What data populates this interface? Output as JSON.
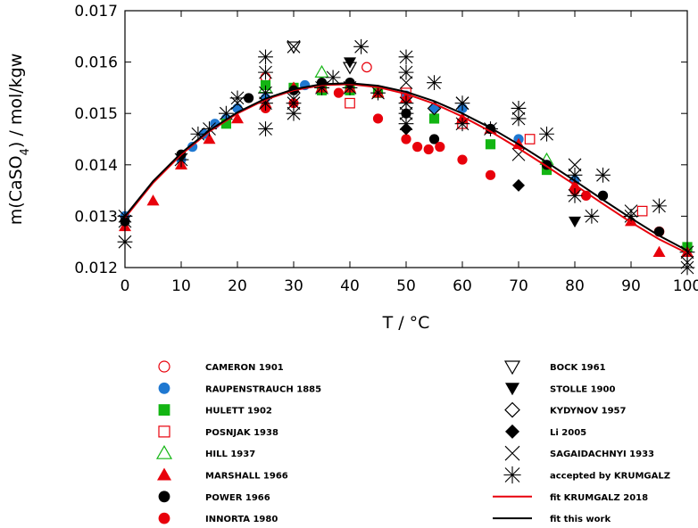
{
  "chart_data": {
    "type": "scatter",
    "title": "",
    "xlabel": "T / °C",
    "ylabel_main": "m(CaSO",
    "ylabel_sub": "4",
    "ylabel_tail": ") / mol/kgw",
    "xlim": [
      0,
      100
    ],
    "ylim": [
      0.012,
      0.017
    ],
    "xticks": [
      "0",
      "10",
      "20",
      "30",
      "40",
      "50",
      "60",
      "70",
      "80",
      "90",
      "100"
    ],
    "yticks": [
      "0.012",
      "0.013",
      "0.014",
      "0.015",
      "0.016",
      "0.017"
    ],
    "grid": false,
    "legend_position": "below",
    "series": [
      {
        "name": "CAMERON 1901",
        "marker": "circle-open",
        "color": "#e8000b",
        "points": [
          [
            25,
            0.0157
          ],
          [
            43,
            0.0159
          ],
          [
            95,
            0.0127
          ]
        ]
      },
      {
        "name": "RAUPENSTRAUCH 1885",
        "marker": "circle-filled",
        "color": "#1f78d1",
        "points": [
          [
            0,
            0.013
          ],
          [
            10,
            0.0141
          ],
          [
            12,
            0.01435
          ],
          [
            14,
            0.0146
          ],
          [
            16,
            0.0148
          ],
          [
            18,
            0.0149
          ],
          [
            20,
            0.0151
          ],
          [
            25,
            0.0153
          ],
          [
            30,
            0.0155
          ],
          [
            32,
            0.01555
          ],
          [
            35,
            0.01555
          ],
          [
            40,
            0.0155
          ],
          [
            45,
            0.0154
          ],
          [
            50,
            0.01535
          ],
          [
            55,
            0.0151
          ],
          [
            60,
            0.0151
          ],
          [
            65,
            0.0147
          ],
          [
            70,
            0.0145
          ],
          [
            75,
            0.014
          ],
          [
            80,
            0.0137
          ],
          [
            85,
            0.0134
          ]
        ]
      },
      {
        "name": "HULETT 1902",
        "marker": "square-filled",
        "color": "#13b513",
        "points": [
          [
            18,
            0.0148
          ],
          [
            25,
            0.01555
          ],
          [
            30,
            0.0155
          ],
          [
            35,
            0.01545
          ],
          [
            40,
            0.01545
          ],
          [
            45,
            0.0154
          ],
          [
            55,
            0.0149
          ],
          [
            65,
            0.0144
          ],
          [
            75,
            0.0139
          ],
          [
            100,
            0.0124
          ]
        ]
      },
      {
        "name": "POSNJAK 1938",
        "marker": "square-open",
        "color": "#e8000b",
        "points": [
          [
            40,
            0.0152
          ],
          [
            50,
            0.0154
          ],
          [
            60,
            0.0148
          ],
          [
            72,
            0.0145
          ],
          [
            92,
            0.0131
          ]
        ]
      },
      {
        "name": "HILL 1937",
        "marker": "triangle-open",
        "color": "#13b513",
        "points": [
          [
            25,
            0.0155
          ],
          [
            35,
            0.0158
          ],
          [
            75,
            0.0141
          ]
        ]
      },
      {
        "name": "MARSHALL 1966",
        "marker": "triangle-filled",
        "color": "#e8000b",
        "points": [
          [
            0,
            0.0128
          ],
          [
            5,
            0.0133
          ],
          [
            10,
            0.014
          ],
          [
            15,
            0.0145
          ],
          [
            20,
            0.0149
          ],
          [
            25,
            0.0152
          ],
          [
            30,
            0.0155
          ],
          [
            35,
            0.0155
          ],
          [
            40,
            0.0155
          ],
          [
            45,
            0.0154
          ],
          [
            50,
            0.0153
          ],
          [
            60,
            0.0149
          ],
          [
            65,
            0.0147
          ],
          [
            70,
            0.0144
          ],
          [
            80,
            0.0136
          ],
          [
            90,
            0.0129
          ],
          [
            95,
            0.0123
          ],
          [
            100,
            0.0123
          ]
        ]
      },
      {
        "name": "POWER 1966",
        "marker": "circle-filled",
        "color": "#000000",
        "points": [
          [
            0,
            0.0129
          ],
          [
            10,
            0.0142
          ],
          [
            22,
            0.0153
          ],
          [
            30,
            0.01545
          ],
          [
            35,
            0.0156
          ],
          [
            40,
            0.0156
          ],
          [
            50,
            0.015
          ],
          [
            55,
            0.0145
          ],
          [
            65,
            0.0147
          ],
          [
            75,
            0.014
          ],
          [
            85,
            0.0134
          ],
          [
            95,
            0.0127
          ]
        ]
      },
      {
        "name": "INNORTA 1980",
        "marker": "circle-filled",
        "color": "#e8000b",
        "points": [
          [
            25,
            0.0151
          ],
          [
            30,
            0.0152
          ],
          [
            38,
            0.0154
          ],
          [
            45,
            0.0149
          ],
          [
            50,
            0.0145
          ],
          [
            52,
            0.01435
          ],
          [
            54,
            0.0143
          ],
          [
            56,
            0.01435
          ],
          [
            60,
            0.0141
          ],
          [
            65,
            0.0138
          ],
          [
            80,
            0.0135
          ],
          [
            82,
            0.0134
          ]
        ]
      },
      {
        "name": "BOCK 1961",
        "marker": "triangle-down-open",
        "color": "#000000",
        "points": [
          [
            30,
            0.0163
          ],
          [
            40,
            0.0159
          ]
        ]
      },
      {
        "name": "STOLLE 1900",
        "marker": "triangle-down-filled",
        "color": "#000000",
        "points": [
          [
            40,
            0.016
          ],
          [
            80,
            0.0129
          ]
        ]
      },
      {
        "name": "KYDYNOV 1957",
        "marker": "diamond-open",
        "color": "#000000",
        "points": [
          [
            30,
            0.0154
          ],
          [
            55,
            0.0151
          ]
        ]
      },
      {
        "name": "Li 2005",
        "marker": "diamond-filled",
        "color": "#000000",
        "points": [
          [
            50,
            0.0147
          ],
          [
            70,
            0.0136
          ]
        ]
      },
      {
        "name": "SAGAIDACHNYI 1933",
        "marker": "cross-x",
        "color": "#000000",
        "points": [
          [
            0,
            0.0129
          ],
          [
            20,
            0.0152
          ],
          [
            30,
            0.0163
          ],
          [
            50,
            0.0156
          ],
          [
            60,
            0.0152
          ],
          [
            70,
            0.0142
          ],
          [
            80,
            0.014
          ],
          [
            90,
            0.0131
          ],
          [
            100,
            0.0121
          ]
        ]
      },
      {
        "name": "accepted by KRUMGALZ",
        "marker": "asterisk",
        "color": "#000000",
        "points": [
          [
            0,
            0.0125
          ],
          [
            0,
            0.013
          ],
          [
            10,
            0.0141
          ],
          [
            13,
            0.0146
          ],
          [
            15,
            0.0147
          ],
          [
            18,
            0.015
          ],
          [
            20,
            0.0153
          ],
          [
            25,
            0.0161
          ],
          [
            25,
            0.0158
          ],
          [
            25,
            0.0147
          ],
          [
            25,
            0.0152
          ],
          [
            25,
            0.0154
          ],
          [
            30,
            0.015
          ],
          [
            30,
            0.0152
          ],
          [
            35,
            0.0155
          ],
          [
            37,
            0.0157
          ],
          [
            40,
            0.0155
          ],
          [
            42,
            0.0163
          ],
          [
            45,
            0.0154
          ],
          [
            50,
            0.0161
          ],
          [
            50,
            0.0158
          ],
          [
            50,
            0.0152
          ],
          [
            50,
            0.015
          ],
          [
            50,
            0.0148
          ],
          [
            55,
            0.0156
          ],
          [
            60,
            0.0152
          ],
          [
            60,
            0.0148
          ],
          [
            65,
            0.0147
          ],
          [
            70,
            0.0151
          ],
          [
            70,
            0.0149
          ],
          [
            75,
            0.0146
          ],
          [
            80,
            0.0138
          ],
          [
            80,
            0.0134
          ],
          [
            83,
            0.013
          ],
          [
            85,
            0.0138
          ],
          [
            90,
            0.013
          ],
          [
            95,
            0.0132
          ],
          [
            100,
            0.0123
          ],
          [
            100,
            0.012
          ]
        ]
      }
    ],
    "fit_lines": [
      {
        "name": "fit KRUMGALZ 2018",
        "color": "#e8000b",
        "points": [
          [
            0,
            0.01297
          ],
          [
            5,
            0.01365
          ],
          [
            10,
            0.0142
          ],
          [
            15,
            0.01465
          ],
          [
            20,
            0.015
          ],
          [
            25,
            0.01527
          ],
          [
            30,
            0.01545
          ],
          [
            35,
            0.01555
          ],
          [
            40,
            0.01557
          ],
          [
            45,
            0.01551
          ],
          [
            50,
            0.01538
          ],
          [
            55,
            0.01519
          ],
          [
            60,
            0.01494
          ],
          [
            65,
            0.01465
          ],
          [
            70,
            0.01432
          ],
          [
            75,
            0.01397
          ],
          [
            80,
            0.01361
          ],
          [
            85,
            0.01324
          ],
          [
            90,
            0.01288
          ],
          [
            95,
            0.01255
          ],
          [
            100,
            0.01228
          ]
        ]
      },
      {
        "name": "fit this work",
        "color": "#000000",
        "points": [
          [
            0,
            0.013
          ],
          [
            5,
            0.01368
          ],
          [
            10,
            0.01423
          ],
          [
            15,
            0.01467
          ],
          [
            20,
            0.01502
          ],
          [
            25,
            0.01529
          ],
          [
            30,
            0.01547
          ],
          [
            35,
            0.01557
          ],
          [
            40,
            0.01559
          ],
          [
            45,
            0.01554
          ],
          [
            50,
            0.01542
          ],
          [
            55,
            0.01524
          ],
          [
            60,
            0.015
          ],
          [
            65,
            0.01472
          ],
          [
            70,
            0.0144
          ],
          [
            75,
            0.01405
          ],
          [
            80,
            0.01369
          ],
          [
            85,
            0.01332
          ],
          [
            90,
            0.01296
          ],
          [
            95,
            0.01262
          ],
          [
            100,
            0.01233
          ]
        ]
      }
    ],
    "legend": {
      "left": [
        {
          "label": "CAMERON 1901",
          "marker": "circle-open",
          "color": "#e8000b"
        },
        {
          "label": "RAUPENSTRAUCH 1885",
          "marker": "circle-filled",
          "color": "#1f78d1"
        },
        {
          "label": "HULETT 1902",
          "marker": "square-filled",
          "color": "#13b513"
        },
        {
          "label": "POSNJAK 1938",
          "marker": "square-open",
          "color": "#e8000b"
        },
        {
          "label": "HILL 1937",
          "marker": "triangle-open",
          "color": "#13b513"
        },
        {
          "label": "MARSHALL 1966",
          "marker": "triangle-filled",
          "color": "#e8000b"
        },
        {
          "label": "POWER 1966",
          "marker": "circle-filled",
          "color": "#000000"
        },
        {
          "label": "INNORTA 1980",
          "marker": "circle-filled",
          "color": "#e8000b"
        }
      ],
      "right": [
        {
          "label": "BOCK 1961",
          "marker": "triangle-down-open",
          "color": "#000000"
        },
        {
          "label": "STOLLE 1900",
          "marker": "triangle-down-filled",
          "color": "#000000"
        },
        {
          "label": "KYDYNOV 1957",
          "marker": "diamond-open",
          "color": "#000000"
        },
        {
          "label": "Li 2005",
          "marker": "diamond-filled",
          "color": "#000000"
        },
        {
          "label": "SAGAIDACHNYI 1933",
          "marker": "cross-x",
          "color": "#000000"
        },
        {
          "label": "accepted by KRUMGALZ",
          "marker": "asterisk",
          "color": "#000000"
        },
        {
          "label": "fit KRUMGALZ 2018",
          "marker": "line",
          "color": "#e8000b"
        },
        {
          "label": "fit this work",
          "marker": "line",
          "color": "#000000"
        }
      ]
    }
  }
}
